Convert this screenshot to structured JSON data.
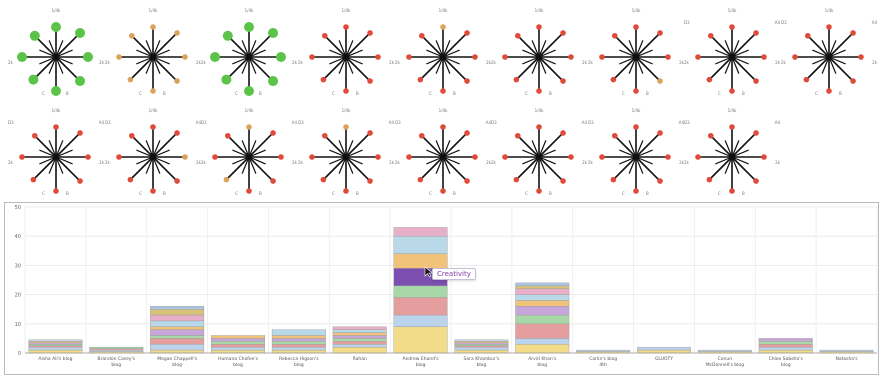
{
  "glyphs": {
    "axis_labels": {
      "top": "1/4k",
      "left": "2k",
      "right": "2k",
      "bottom_left": "C",
      "bottom_right": "B",
      "top_left": "D3",
      "top_right": "A4"
    },
    "items": [
      {
        "colors": [
          "#5cc34a",
          "#5cc34a",
          "#5cc34a",
          "#5cc34a",
          "#5cc34a",
          "#5cc34a",
          "#5cc34a",
          "#5cc34a"
        ],
        "big": true
      },
      {
        "colors": [
          "#d9a35a",
          "#d9a35a",
          "#d9a35a",
          "#d9a35a",
          "#d9a35a",
          "#d9a35a",
          "#d9a35a",
          "#d9a35a"
        ],
        "big": false
      },
      {
        "colors": [
          "#5cc34a",
          "#5cc34a",
          "#5cc34a",
          "#5cc34a",
          "#5cc34a",
          "#5cc34a",
          "#5cc34a",
          "#5cc34a"
        ],
        "big": true
      },
      {
        "colors": [
          "#e04a3a",
          "#e04a3a",
          "#e04a3a",
          "#e04a3a",
          "#e04a3a",
          "#e04a3a",
          "#e04a3a",
          "#e04a3a"
        ],
        "big": false
      },
      {
        "colors": [
          "#d9a35a",
          "#e04a3a",
          "#e04a3a",
          "#e04a3a",
          "#e04a3a",
          "#e04a3a",
          "#e04a3a",
          "#e04a3a"
        ],
        "big": false
      },
      {
        "colors": [
          "#e04a3a",
          "#e04a3a",
          "#e04a3a",
          "#e04a3a",
          "#e04a3a",
          "#e04a3a",
          "#e04a3a",
          "#e04a3a"
        ],
        "big": false
      },
      {
        "colors": [
          "#e04a3a",
          "#e04a3a",
          "#e04a3a",
          "#d9a35a",
          "#e04a3a",
          "#e04a3a",
          "#e04a3a",
          "#e04a3a"
        ],
        "big": false
      },
      {
        "colors": [
          "#e04a3a",
          "#e04a3a",
          "#e04a3a",
          "#e04a3a",
          "#e04a3a",
          "#e04a3a",
          "#e04a3a",
          "#e04a3a"
        ],
        "big": false
      },
      {
        "colors": [
          "#e04a3a",
          "#e04a3a",
          "#e04a3a",
          "#e04a3a",
          "#e04a3a",
          "#e04a3a",
          "#e04a3a",
          "#e04a3a"
        ],
        "big": false
      },
      {
        "colors": [
          "#e04a3a",
          "#e04a3a",
          "#e04a3a",
          "#e04a3a",
          "#e04a3a",
          "#e04a3a",
          "#e04a3a",
          "#e04a3a"
        ],
        "big": false
      },
      {
        "colors": [
          "#e04a3a",
          "#e04a3a",
          "#d9a35a",
          "#e04a3a",
          "#e04a3a",
          "#e04a3a",
          "#e04a3a",
          "#e04a3a"
        ],
        "big": false
      },
      {
        "colors": [
          "#d9a35a",
          "#e04a3a",
          "#e04a3a",
          "#e04a3a",
          "#e04a3a",
          "#d9a35a",
          "#e04a3a",
          "#e04a3a"
        ],
        "big": false
      },
      {
        "colors": [
          "#d9a35a",
          "#e04a3a",
          "#e04a3a",
          "#e04a3a",
          "#e04a3a",
          "#e04a3a",
          "#e04a3a",
          "#e04a3a"
        ],
        "big": false
      },
      {
        "colors": [
          "#e04a3a",
          "#e04a3a",
          "#e04a3a",
          "#e04a3a",
          "#e04a3a",
          "#e04a3a",
          "#e04a3a",
          "#e04a3a"
        ],
        "big": false
      },
      {
        "colors": [
          "#e04a3a",
          "#e04a3a",
          "#e04a3a",
          "#e04a3a",
          "#e04a3a",
          "#e04a3a",
          "#e04a3a",
          "#e04a3a"
        ],
        "big": false
      },
      {
        "colors": [
          "#e04a3a",
          "#e04a3a",
          "#e04a3a",
          "#e04a3a",
          "#e04a3a",
          "#e04a3a",
          "#e04a3a",
          "#e04a3a"
        ],
        "big": false
      },
      {
        "colors": [
          "#e04a3a",
          "#e04a3a",
          "#e04a3a",
          "#e04a3a",
          "#e04a3a",
          "#e04a3a",
          "#e04a3a",
          "#e04a3a"
        ],
        "big": false
      }
    ]
  },
  "tooltip": {
    "text": "Creativity"
  },
  "chart_data": {
    "type": "bar",
    "stacked": true,
    "yticks": [
      0,
      10,
      20,
      30,
      40,
      50
    ],
    "ylim": [
      0,
      50
    ],
    "grid": true,
    "categories": [
      "Aisha Ali's blog",
      "Brandon Casey's blog",
      "Megan Chappell's blog",
      "Humana Chafee's blog",
      "Rebecca Higson's blog",
      "Rahan",
      "Andrew Ehand's blog",
      "Sara Khambur's blog",
      "Arvid Khan's blog",
      "Carlin's blog 4th",
      "GLUOTY",
      "Conun McDonnell's blog",
      "Chloe Sabella's blog",
      "Natasha's"
    ],
    "segment_colors": [
      "#f2dc8a",
      "#bcd3ec",
      "#e59e9e",
      "#a8d8a8",
      "#c7a6d9",
      "#f0c27a",
      "#b9d9e8",
      "#e8b0c8",
      "#d7c27c",
      "#aac6e4"
    ],
    "stacks": [
      [
        1,
        1,
        0.5,
        0.5,
        0.5,
        0.5,
        0.5
      ],
      [
        0.5,
        0.5,
        0.5,
        0.5
      ],
      [
        1,
        2,
        2,
        1,
        2,
        1,
        2,
        2,
        2,
        1
      ],
      [
        1,
        1,
        1,
        1,
        1,
        1
      ],
      [
        1,
        1,
        1,
        1,
        1,
        1,
        2
      ],
      [
        2,
        1,
        1,
        1,
        1,
        1,
        1,
        1
      ],
      [
        9,
        4,
        6,
        4,
        6,
        5,
        6,
        3
      ],
      [
        1,
        1,
        0.5,
        0.5,
        0.5,
        0.5,
        0.5
      ],
      [
        3,
        2,
        5,
        3,
        3,
        2,
        2,
        2,
        1,
        1
      ],
      [
        0.5,
        0.5
      ],
      [
        1,
        1
      ],
      [
        0.5,
        0.5
      ],
      [
        1,
        1,
        1,
        1,
        1
      ],
      [
        0.5,
        0.5
      ]
    ],
    "highlight": {
      "category_index": 6,
      "segment_index": 4,
      "color": "#7d4fb0"
    }
  }
}
